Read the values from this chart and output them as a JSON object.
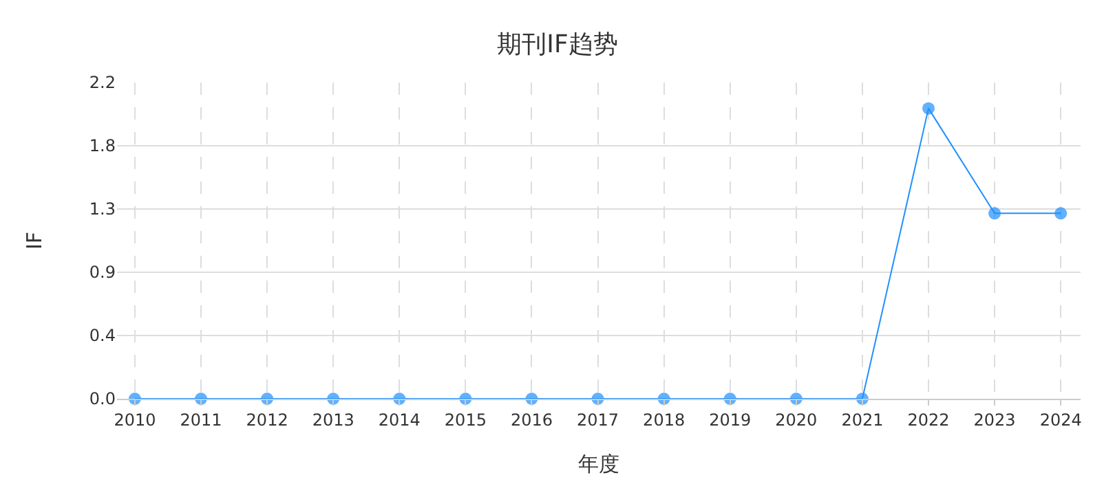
{
  "chart_data": {
    "type": "line",
    "title": "期刊IF趋势",
    "xlabel": "年度",
    "ylabel": "IF",
    "categories": [
      "2010",
      "2011",
      "2012",
      "2013",
      "2014",
      "2015",
      "2016",
      "2017",
      "2018",
      "2019",
      "2020",
      "2021",
      "2022",
      "2023",
      "2024"
    ],
    "series": [
      {
        "color": "#1e90ff",
        "values": [
          0,
          0,
          0,
          0,
          0,
          0,
          0,
          0,
          0,
          0,
          0,
          0,
          2.02,
          1.29,
          1.29
        ]
      }
    ],
    "ylim": [
      0,
      2.2
    ],
    "yticks": [
      {
        "value": 0,
        "label": "0.0"
      },
      {
        "value": 0.44,
        "label": "0.4"
      },
      {
        "value": 0.88,
        "label": "0.9"
      },
      {
        "value": 1.32,
        "label": "1.3"
      },
      {
        "value": 1.76,
        "label": "1.8"
      },
      {
        "value": 2.2,
        "label": "2.2"
      }
    ],
    "grid": true,
    "marker": "circle",
    "line_style": "solid"
  }
}
